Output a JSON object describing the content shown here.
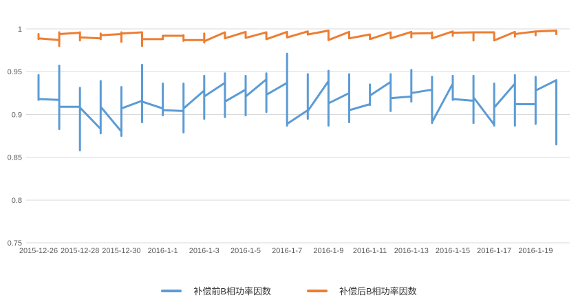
{
  "chart_data": {
    "type": "line",
    "title": "",
    "grid": "horizontal-only",
    "legend_position": "bottom-center",
    "x_axis": {
      "tick_labels": [
        "2015-12-26",
        "2015-12-28",
        "2015-12-30",
        "2016-1-1",
        "2016-1-3",
        "2016-1-5",
        "2016-1-7",
        "2016-1-9",
        "2016-1-11",
        "2016-1-13",
        "2016-1-15",
        "2016-1-17",
        "2016-1-19"
      ]
    },
    "y_axis": {
      "tick_labels": [
        "1",
        "0.95",
        "0.9",
        "0.85",
        "0.8",
        "0.75"
      ],
      "tick_values": [
        1,
        0.95,
        0.9,
        0.85,
        0.8,
        0.75
      ],
      "range": [
        0.75,
        1.0
      ]
    },
    "dates": [
      "2015-12-26",
      "2015-12-27",
      "2015-12-28",
      "2015-12-29",
      "2015-12-30",
      "2015-12-31",
      "2016-1-1",
      "2016-1-2",
      "2016-1-3",
      "2016-1-4",
      "2016-1-5",
      "2016-1-6",
      "2016-1-7",
      "2016-1-8",
      "2016-1-9",
      "2016-1-10",
      "2016-1-11",
      "2016-1-12",
      "2016-1-13",
      "2016-1-14",
      "2016-1-15",
      "2016-1-16",
      "2016-1-17",
      "2016-1-18",
      "2016-1-19",
      "2016-1-20"
    ],
    "point_format": [
      "entry",
      "high",
      "low",
      "exit"
    ],
    "series": [
      {
        "name": "补偿前B相功率因数",
        "color": "#5B9BD5",
        "daily": [
          [
            0.946,
            0.946,
            0.917,
            0.918
          ],
          [
            0.917,
            0.957,
            0.883,
            0.909
          ],
          [
            0.909,
            0.931,
            0.858,
            0.908
          ],
          [
            0.883,
            0.939,
            0.878,
            0.909
          ],
          [
            0.88,
            0.932,
            0.875,
            0.907
          ],
          [
            0.916,
            0.958,
            0.891,
            0.915
          ],
          [
            0.907,
            0.936,
            0.899,
            0.905
          ],
          [
            0.904,
            0.936,
            0.879,
            0.907
          ],
          [
            0.928,
            0.945,
            0.895,
            0.921
          ],
          [
            0.937,
            0.948,
            0.897,
            0.915
          ],
          [
            0.929,
            0.945,
            0.899,
            0.921
          ],
          [
            0.941,
            0.948,
            0.903,
            0.923
          ],
          [
            0.937,
            0.971,
            0.887,
            0.889
          ],
          [
            0.905,
            0.947,
            0.895,
            0.904
          ],
          [
            0.939,
            0.951,
            0.887,
            0.913
          ],
          [
            0.925,
            0.947,
            0.891,
            0.905
          ],
          [
            0.912,
            0.935,
            0.911,
            0.922
          ],
          [
            0.938,
            0.947,
            0.904,
            0.919
          ],
          [
            0.921,
            0.952,
            0.915,
            0.925
          ],
          [
            0.929,
            0.944,
            0.89,
            0.891
          ],
          [
            0.936,
            0.945,
            0.917,
            0.918
          ],
          [
            0.916,
            0.945,
            0.89,
            0.92
          ],
          [
            0.888,
            0.936,
            0.887,
            0.908
          ],
          [
            0.936,
            0.946,
            0.887,
            0.912
          ],
          [
            0.912,
            0.944,
            0.889,
            0.928
          ],
          [
            0.94,
            0.94,
            0.865,
            0.865
          ]
        ]
      },
      {
        "name": "补偿后B相功率因数",
        "color": "#ED7D31",
        "daily": [
          [
            0.993,
            0.994,
            0.988,
            0.989
          ],
          [
            0.987,
            0.996,
            0.98,
            0.994
          ],
          [
            0.9955,
            0.996,
            0.9865,
            0.99
          ],
          [
            0.989,
            0.9945,
            0.988,
            0.9925
          ],
          [
            0.994,
            0.996,
            0.985,
            0.9945
          ],
          [
            0.996,
            0.996,
            0.98,
            0.988
          ],
          [
            0.988,
            0.992,
            0.988,
            0.992
          ],
          [
            0.992,
            0.9925,
            0.986,
            0.987
          ],
          [
            0.987,
            0.9945,
            0.984,
            0.9855
          ],
          [
            0.996,
            0.996,
            0.989,
            0.989
          ],
          [
            0.9965,
            0.9965,
            0.9895,
            0.9895
          ],
          [
            0.996,
            0.996,
            0.988,
            0.988
          ],
          [
            0.9965,
            0.9965,
            0.99,
            0.99
          ],
          [
            0.997,
            0.997,
            0.9935,
            0.9935
          ],
          [
            0.998,
            0.998,
            0.987,
            0.987
          ],
          [
            0.9965,
            0.9965,
            0.989,
            0.989
          ],
          [
            0.9935,
            0.9935,
            0.988,
            0.988
          ],
          [
            0.996,
            0.996,
            0.989,
            0.989
          ],
          [
            0.9965,
            0.9965,
            0.99,
            0.9945
          ],
          [
            0.995,
            0.996,
            0.989,
            0.989
          ],
          [
            0.997,
            0.997,
            0.992,
            0.9955
          ],
          [
            0.996,
            0.996,
            0.9865,
            0.996
          ],
          [
            0.996,
            0.996,
            0.9865,
            0.9865
          ],
          [
            0.9965,
            0.9965,
            0.991,
            0.994
          ],
          [
            0.997,
            0.997,
            0.9925,
            0.997
          ],
          [
            0.998,
            0.998,
            0.994,
            0.994
          ]
        ]
      }
    ]
  },
  "legend": {
    "before_label": "补偿前B相功率因数",
    "after_label": "补偿后B相功率因数"
  },
  "colors": {
    "background": "#FFFFFF",
    "grid": "#D9D9D9",
    "axis_text": "#595959",
    "legend_text": "#333333",
    "series_before": "#5B9BD5",
    "series_after": "#ED7D31"
  }
}
